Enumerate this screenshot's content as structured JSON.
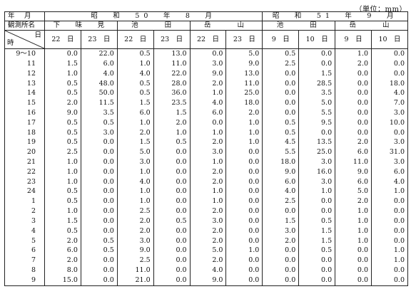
{
  "unit_label": "（単位：mm）",
  "header": {
    "year_month_label": "年　月",
    "station_label": "観測所名",
    "hour_label": "時",
    "day_label": "日",
    "period1": "昭　和　50　年　8　月",
    "period2": "昭　和　51　年　9　月",
    "stations1": [
      "下　味　見",
      "池　　田",
      "岳　　山"
    ],
    "stations2": [
      "池　　田",
      "岳　　山"
    ],
    "days": [
      "22　日",
      "23　日",
      "22　日",
      "23　日",
      "22　日",
      "23　日",
      "9　日",
      "10　日",
      "9　日",
      "10　日"
    ]
  },
  "rows": [
    {
      "hour": "9〜10",
      "values": [
        "0.0",
        "22.0",
        "0.5",
        "13.0",
        "0.0",
        "5.0",
        "0.5",
        "0.0",
        "1.0",
        "0.0"
      ]
    },
    {
      "hour": "11",
      "values": [
        "1.5",
        "6.0",
        "1.0",
        "11.0",
        "3.0",
        "9.0",
        "2.5",
        "0.0",
        "2.0",
        "0.0"
      ]
    },
    {
      "hour": "12",
      "values": [
        "1.0",
        "4.0",
        "4.0",
        "22.0",
        "9.0",
        "13.0",
        "0.0",
        "1.5",
        "0.0",
        "0.0"
      ]
    },
    {
      "hour": "13",
      "values": [
        "0.5",
        "48.0",
        "0.5",
        "28.0",
        "2.0",
        "11.0",
        "0.0",
        "28.5",
        "0.0",
        "18.0"
      ]
    },
    {
      "hour": "14",
      "values": [
        "0.5",
        "50.0",
        "0.5",
        "36.0",
        "1.0",
        "25.0",
        "0.0",
        "3.5",
        "0.0",
        "4.0"
      ]
    },
    {
      "hour": "15",
      "values": [
        "2.0",
        "11.5",
        "1.5",
        "23.5",
        "4.0",
        "18.0",
        "0.0",
        "5.0",
        "0.0",
        "7.0"
      ]
    },
    {
      "hour": "16",
      "values": [
        "9.0",
        "3.5",
        "6.0",
        "1.5",
        "6.0",
        "2.0",
        "0.0",
        "5.5",
        "0.0",
        "3.0"
      ]
    },
    {
      "hour": "17",
      "values": [
        "0.5",
        "0.5",
        "1.0",
        "2.0",
        "0.0",
        "1.0",
        "0.5",
        "9.5",
        "0.0",
        "10.0"
      ]
    },
    {
      "hour": "18",
      "values": [
        "0.5",
        "3.0",
        "2.0",
        "1.0",
        "1.0",
        "1.0",
        "0.5",
        "0.0",
        "0.0",
        "0.0"
      ]
    },
    {
      "hour": "19",
      "values": [
        "0.5",
        "0.0",
        "1.5",
        "0.5",
        "2.0",
        "1.0",
        "4.5",
        "13.5",
        "2.0",
        "3.0"
      ]
    },
    {
      "hour": "20",
      "values": [
        "2.5",
        "0.0",
        "5.0",
        "0.0",
        "3.0",
        "0.0",
        "5.5",
        "25.0",
        "6.0",
        "31.0"
      ]
    },
    {
      "hour": "21",
      "values": [
        "1.0",
        "0.0",
        "3.0",
        "0.0",
        "1.0",
        "0.0",
        "18.0",
        "3.0",
        "11.0",
        "3.0"
      ]
    },
    {
      "hour": "22",
      "values": [
        "1.0",
        "0.0",
        "1.0",
        "0.0",
        "2.0",
        "0.0",
        "9.0",
        "16.0",
        "9.0",
        "6.0"
      ]
    },
    {
      "hour": "23",
      "values": [
        "1.0",
        "0.0",
        "4.0",
        "0.0",
        "2.0",
        "0.0",
        "6.0",
        "3.0",
        "6.0",
        "4.0"
      ]
    },
    {
      "hour": "24",
      "values": [
        "0.5",
        "0.0",
        "1.0",
        "0.0",
        "1.0",
        "0.0",
        "4.0",
        "1.0",
        "5.0",
        "1.0"
      ]
    },
    {
      "hour": "1",
      "values": [
        "0.5",
        "0.0",
        "1.0",
        "0.0",
        "1.0",
        "0.0",
        "2.5",
        "0.0",
        "2.0",
        "0.0"
      ]
    },
    {
      "hour": "2",
      "values": [
        "1.0",
        "0.0",
        "2.5",
        "0.0",
        "2.0",
        "0.0",
        "0.0",
        "0.0",
        "1.0",
        "0.0"
      ]
    },
    {
      "hour": "3",
      "values": [
        "1.5",
        "0.0",
        "2.0",
        "0.5",
        "3.0",
        "0.0",
        "1.5",
        "0.5",
        "1.0",
        "0.0"
      ]
    },
    {
      "hour": "4",
      "values": [
        "0.5",
        "0.0",
        "2.0",
        "0.0",
        "2.0",
        "0.0",
        "3.0",
        "1.5",
        "1.0",
        "0.0"
      ]
    },
    {
      "hour": "5",
      "values": [
        "2.0",
        "0.5",
        "3.0",
        "0.0",
        "2.0",
        "0.0",
        "2.0",
        "1.5",
        "1.0",
        "0.0"
      ]
    },
    {
      "hour": "6",
      "values": [
        "6.0",
        "0.5",
        "9.0",
        "0.0",
        "5.0",
        "1.0",
        "0.0",
        "0.5",
        "0.0",
        "1.0"
      ]
    },
    {
      "hour": "7",
      "values": [
        "2.0",
        "0.0",
        "2.5",
        "0.0",
        "2.0",
        "0.0",
        "0.0",
        "0.0",
        "0.0",
        "1.0"
      ]
    },
    {
      "hour": "8",
      "values": [
        "8.0",
        "0.0",
        "11.0",
        "0.0",
        "4.0",
        "0.0",
        "0.0",
        "0.0",
        "0.0",
        "0.0"
      ]
    },
    {
      "hour": "9",
      "values": [
        "15.0",
        "0.0",
        "21.0",
        "0.0",
        "9.0",
        "0.0",
        "0.0",
        "0.0",
        "0.0",
        "0.0"
      ]
    }
  ]
}
